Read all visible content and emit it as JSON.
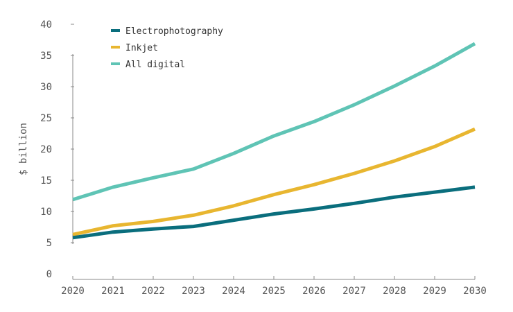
{
  "chart_data": {
    "type": "line",
    "title": "",
    "xlabel": "",
    "ylabel": "$ billion",
    "ylim": [
      0,
      40
    ],
    "yticks": [
      "0",
      "5",
      "10",
      "15",
      "20",
      "25",
      "30",
      "35",
      "40"
    ],
    "x": [
      "2020",
      "2021",
      "2022",
      "2023",
      "2024",
      "2025",
      "2026",
      "2027",
      "2028",
      "2029",
      "2030"
    ],
    "grid": false,
    "legend_position": "top-left",
    "series": [
      {
        "name": "Electrophotography",
        "color": "#0a6e7d",
        "values": [
          5.8,
          6.7,
          7.2,
          7.6,
          8.6,
          9.6,
          10.4,
          11.3,
          12.3,
          13.1,
          13.9
        ]
      },
      {
        "name": "Inkjet",
        "color": "#e8b630",
        "values": [
          6.3,
          7.7,
          8.4,
          9.4,
          10.9,
          12.7,
          14.3,
          16.1,
          18.1,
          20.4,
          23.2
        ]
      },
      {
        "name": "All digital",
        "color": "#5fc4b5",
        "values": [
          11.9,
          13.9,
          15.4,
          16.8,
          19.3,
          22.1,
          24.4,
          27.1,
          30.1,
          33.3,
          36.9
        ]
      }
    ]
  }
}
